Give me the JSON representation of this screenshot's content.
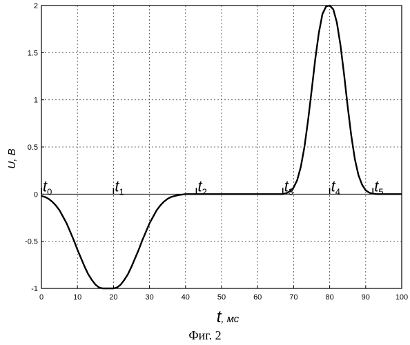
{
  "chart_data": {
    "type": "line",
    "xlabel_symbol": "t",
    "xlabel_unit": ", мс",
    "ylabel": "U, B",
    "xlim": [
      0,
      100
    ],
    "ylim": [
      -1,
      2
    ],
    "x_ticks": [
      0,
      10,
      20,
      30,
      40,
      50,
      60,
      70,
      80,
      90,
      100
    ],
    "y_ticks": [
      -1,
      -0.5,
      0,
      0.5,
      1,
      1.5,
      2
    ],
    "y_tick_labels": [
      "-1",
      "-0.5",
      "0",
      "0.5",
      "1",
      "1.5",
      "2"
    ],
    "grid": true,
    "series": [
      {
        "x": [
          0,
          1,
          2,
          3,
          4,
          5,
          6,
          7,
          8,
          9,
          10,
          11,
          12,
          13,
          14,
          15,
          16,
          17,
          18,
          19,
          20,
          21,
          22,
          23,
          24,
          25,
          26,
          27,
          28,
          29,
          30,
          31,
          32,
          33,
          34,
          35,
          36,
          37,
          38,
          39,
          40,
          41,
          42,
          43,
          44,
          45,
          46,
          47,
          48,
          49,
          50,
          51,
          52,
          53,
          54,
          55,
          56,
          57,
          58,
          59,
          60,
          61,
          62,
          63,
          64,
          65,
          66,
          67,
          68,
          69,
          70,
          71,
          72,
          73,
          74,
          75,
          76,
          77,
          78,
          79,
          80,
          81,
          82,
          83,
          84,
          85,
          86,
          87,
          88,
          89,
          90,
          91,
          92,
          93,
          94,
          95,
          96,
          97,
          98,
          99,
          100
        ],
        "y": [
          -0.02,
          -0.03,
          -0.05,
          -0.08,
          -0.12,
          -0.17,
          -0.24,
          -0.31,
          -0.4,
          -0.49,
          -0.59,
          -0.68,
          -0.77,
          -0.85,
          -0.91,
          -0.96,
          -0.99,
          -1.0,
          -1.0,
          -1.0,
          -1.0,
          -0.99,
          -0.96,
          -0.91,
          -0.85,
          -0.77,
          -0.68,
          -0.59,
          -0.49,
          -0.4,
          -0.31,
          -0.24,
          -0.17,
          -0.12,
          -0.08,
          -0.05,
          -0.03,
          -0.02,
          -0.01,
          -0.005,
          0,
          0,
          0,
          0,
          0,
          0,
          0,
          0,
          0,
          0,
          0,
          0,
          0,
          0,
          0,
          0,
          0,
          0,
          0,
          0,
          0,
          0,
          0,
          0,
          0,
          0,
          0,
          0,
          0.01,
          0.03,
          0.07,
          0.15,
          0.29,
          0.5,
          0.78,
          1.1,
          1.43,
          1.71,
          1.91,
          1.99,
          2.0,
          1.96,
          1.82,
          1.58,
          1.27,
          0.93,
          0.62,
          0.37,
          0.2,
          0.1,
          0.04,
          0.015,
          0.005,
          0,
          0,
          0,
          0,
          0,
          0,
          0,
          0
        ]
      }
    ],
    "markers": [
      {
        "symbol": "t",
        "sub": "0",
        "x": 0
      },
      {
        "symbol": "t",
        "sub": "1",
        "x": 20
      },
      {
        "symbol": "t",
        "sub": "2",
        "x": 43
      },
      {
        "symbol": "t",
        "sub": "3",
        "x": 67
      },
      {
        "symbol": "t",
        "sub": "4",
        "x": 80
      },
      {
        "symbol": "t",
        "sub": "5",
        "x": 92
      }
    ]
  },
  "caption": "Фиг. 2"
}
